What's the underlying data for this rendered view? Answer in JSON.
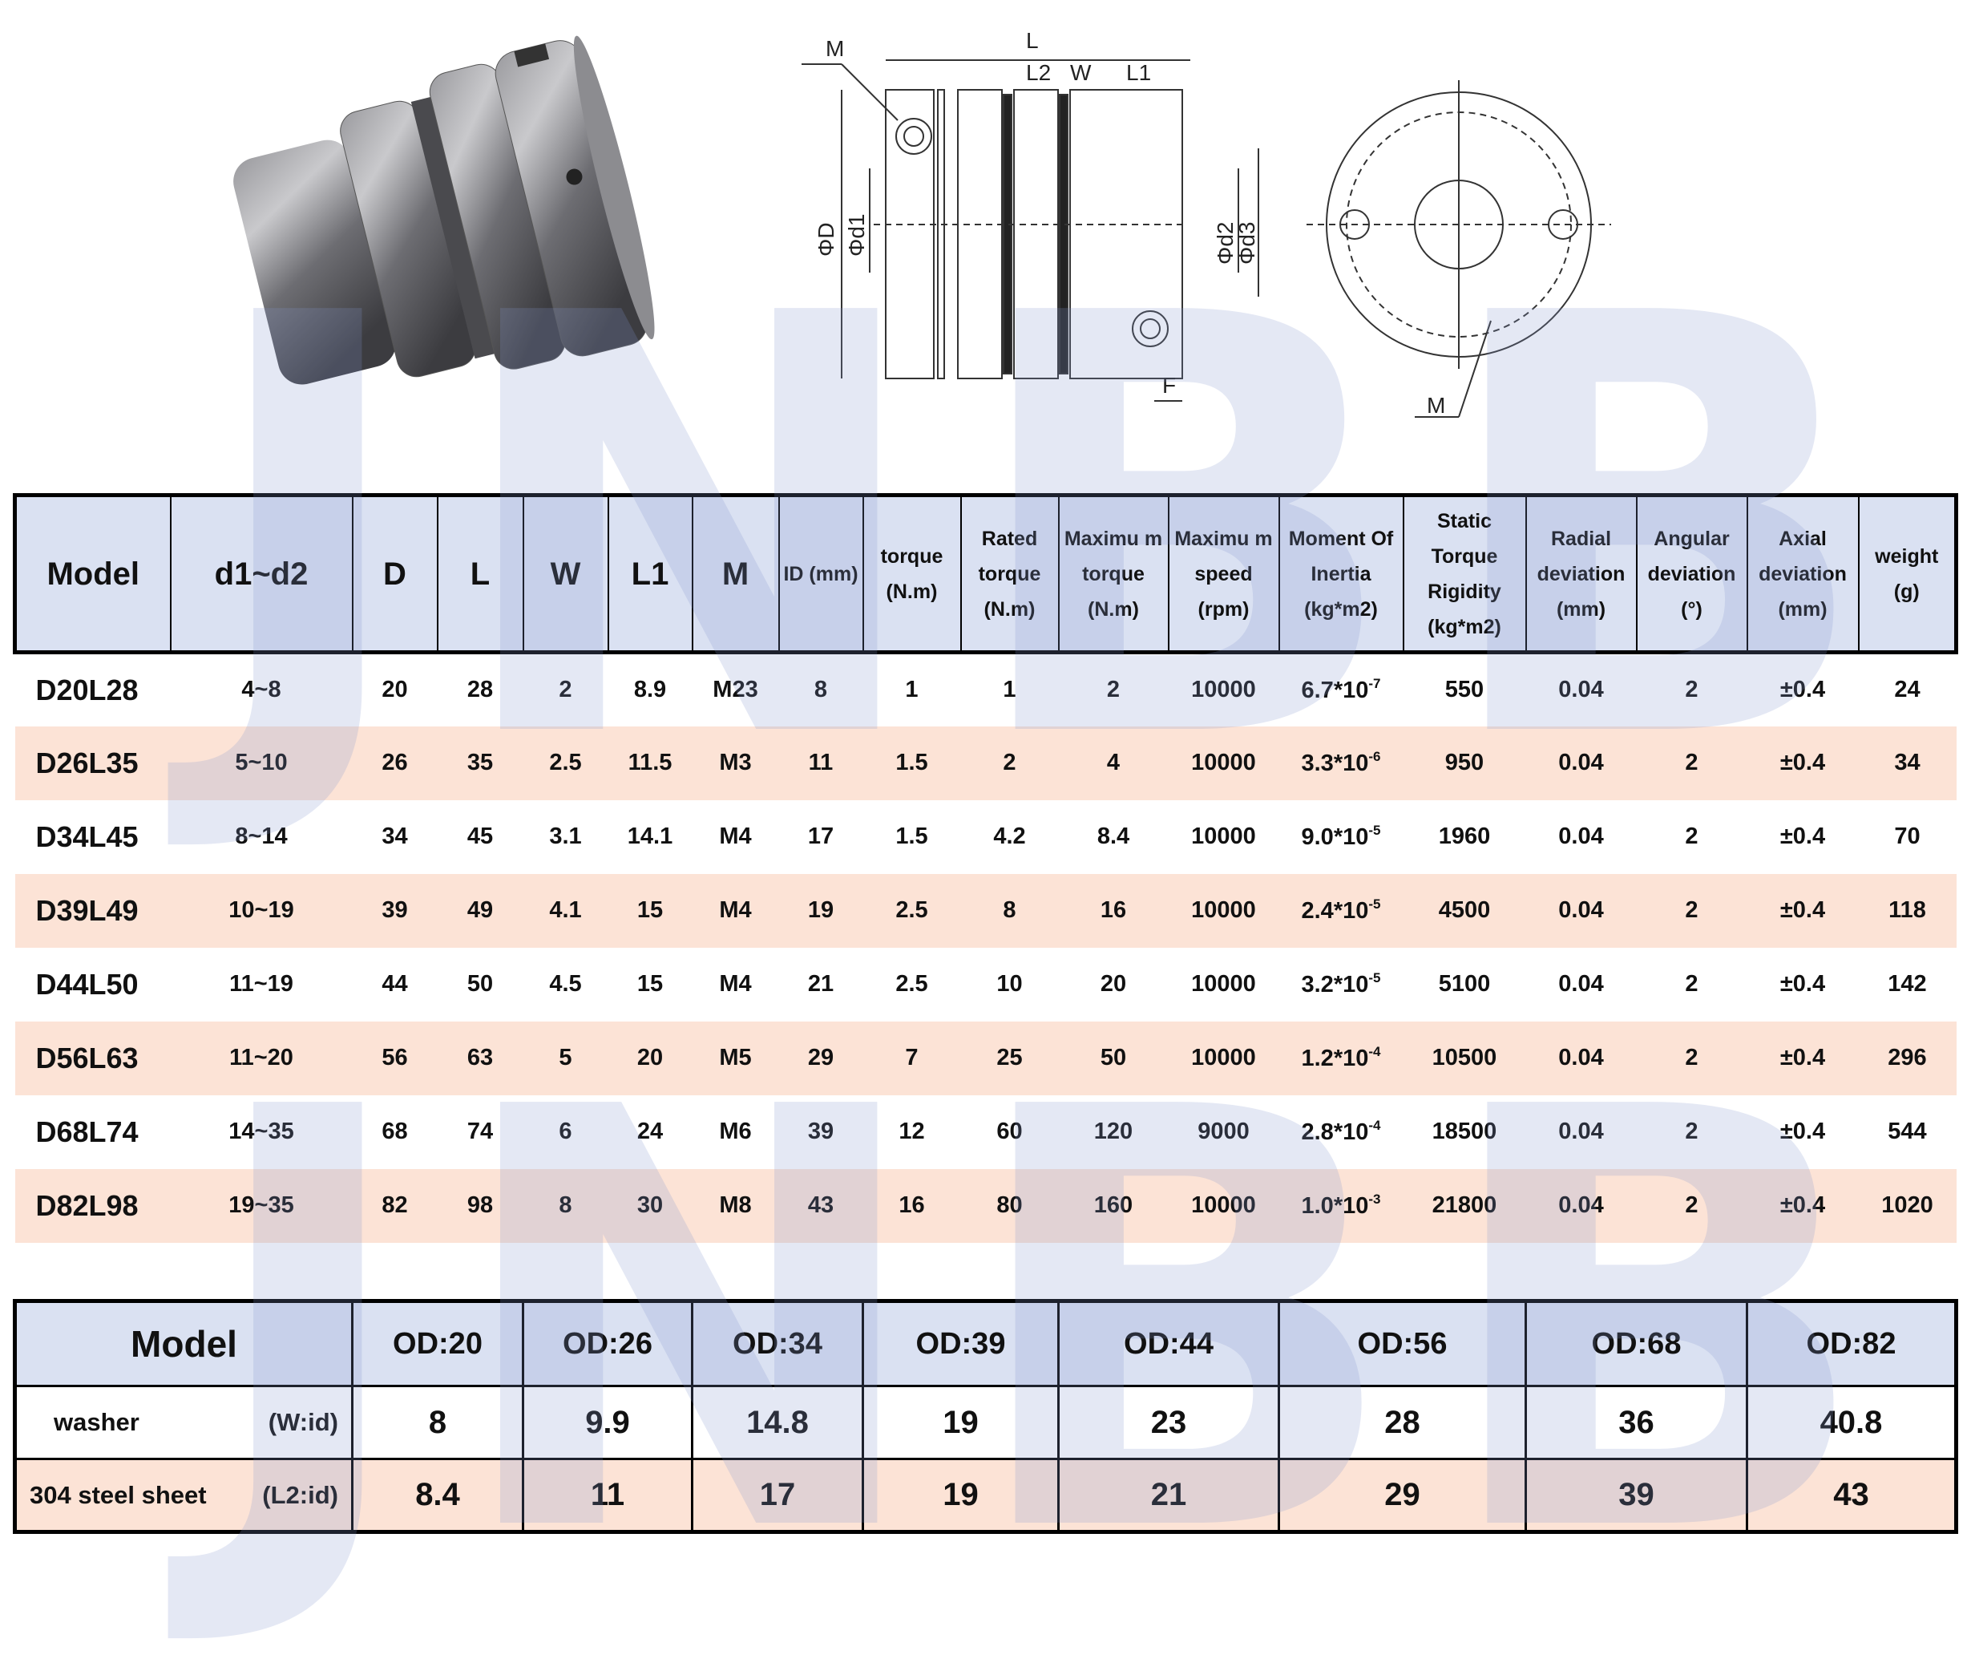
{
  "watermark": "JNBB",
  "diagram_labels": {
    "L": "L",
    "L2": "L2",
    "W": "W",
    "L1": "L1",
    "M_top": "M",
    "D": "ΦD",
    "d1": "Φd1",
    "d2": "Φd2",
    "d3": "Φd3",
    "F": "F",
    "M_side": "M"
  },
  "spec_table": {
    "headers": [
      "Model",
      "d1~d2",
      "D",
      "L",
      "W",
      "L1",
      "M",
      "ID (mm)",
      "torque (N.m)",
      "Rated torque (N.m)",
      "Maximu m torque (N.m)",
      "Maximu m speed (rpm)",
      "Moment Of Inertia (kg*m2)",
      "Static Torque Rigidity (kg*m2)",
      "Radial deviation (mm)",
      "Angular deviation (°)",
      "Axial deviation (mm)",
      "weight (g)"
    ],
    "rows": [
      {
        "model": "D20L28",
        "d": "4~8",
        "D": "20",
        "L": "28",
        "W": "2",
        "L1": "8.9",
        "M": "M23",
        "ID": "8",
        "torque": "1",
        "rated": "1",
        "max_torque": "2",
        "speed": "10000",
        "inertia": "6.7*10",
        "inertia_exp": "-7",
        "rigidity": "550",
        "radial": "0.04",
        "angular": "2",
        "axial": "±0.4",
        "weight": "24"
      },
      {
        "model": "D26L35",
        "d": "5~10",
        "D": "26",
        "L": "35",
        "W": "2.5",
        "L1": "11.5",
        "M": "M3",
        "ID": "11",
        "torque": "1.5",
        "rated": "2",
        "max_torque": "4",
        "speed": "10000",
        "inertia": "3.3*10",
        "inertia_exp": "-6",
        "rigidity": "950",
        "radial": "0.04",
        "angular": "2",
        "axial": "±0.4",
        "weight": "34"
      },
      {
        "model": "D34L45",
        "d": "8~14",
        "D": "34",
        "L": "45",
        "W": "3.1",
        "L1": "14.1",
        "M": "M4",
        "ID": "17",
        "torque": "1.5",
        "rated": "4.2",
        "max_torque": "8.4",
        "speed": "10000",
        "inertia": "9.0*10",
        "inertia_exp": "-5",
        "rigidity": "1960",
        "radial": "0.04",
        "angular": "2",
        "axial": "±0.4",
        "weight": "70"
      },
      {
        "model": "D39L49",
        "d": "10~19",
        "D": "39",
        "L": "49",
        "W": "4.1",
        "L1": "15",
        "M": "M4",
        "ID": "19",
        "torque": "2.5",
        "rated": "8",
        "max_torque": "16",
        "speed": "10000",
        "inertia": "2.4*10",
        "inertia_exp": "-5",
        "rigidity": "4500",
        "radial": "0.04",
        "angular": "2",
        "axial": "±0.4",
        "weight": "118"
      },
      {
        "model": "D44L50",
        "d": "11~19",
        "D": "44",
        "L": "50",
        "W": "4.5",
        "L1": "15",
        "M": "M4",
        "ID": "21",
        "torque": "2.5",
        "rated": "10",
        "max_torque": "20",
        "speed": "10000",
        "inertia": "3.2*10",
        "inertia_exp": "-5",
        "rigidity": "5100",
        "radial": "0.04",
        "angular": "2",
        "axial": "±0.4",
        "weight": "142"
      },
      {
        "model": "D56L63",
        "d": "11~20",
        "D": "56",
        "L": "63",
        "W": "5",
        "L1": "20",
        "M": "M5",
        "ID": "29",
        "torque": "7",
        "rated": "25",
        "max_torque": "50",
        "speed": "10000",
        "inertia": "1.2*10",
        "inertia_exp": "-4",
        "rigidity": "10500",
        "radial": "0.04",
        "angular": "2",
        "axial": "±0.4",
        "weight": "296"
      },
      {
        "model": "D68L74",
        "d": "14~35",
        "D": "68",
        "L": "74",
        "W": "6",
        "L1": "24",
        "M": "M6",
        "ID": "39",
        "torque": "12",
        "rated": "60",
        "max_torque": "120",
        "speed": "9000",
        "inertia": "2.8*10",
        "inertia_exp": "-4",
        "rigidity": "18500",
        "radial": "0.04",
        "angular": "2",
        "axial": "±0.4",
        "weight": "544"
      },
      {
        "model": "D82L98",
        "d": "19~35",
        "D": "82",
        "L": "98",
        "W": "8",
        "L1": "30",
        "M": "M8",
        "ID": "43",
        "torque": "16",
        "rated": "80",
        "max_torque": "160",
        "speed": "10000",
        "inertia": "1.0*10",
        "inertia_exp": "-3",
        "rigidity": "21800",
        "radial": "0.04",
        "angular": "2",
        "axial": "±0.4",
        "weight": "1020"
      }
    ]
  },
  "washer_table": {
    "model_label": "Model",
    "headers": [
      "OD:20",
      "OD:26",
      "OD:34",
      "OD:39",
      "OD:44",
      "OD:56",
      "OD:68",
      "OD:82"
    ],
    "rows": [
      {
        "label": "washer",
        "unit": "(W:id)",
        "values": [
          "8",
          "9.9",
          "14.8",
          "19",
          "23",
          "28",
          "36",
          "40.8"
        ]
      },
      {
        "label": "304 steel sheet",
        "unit": "(L2:id)",
        "values": [
          "8.4",
          "11",
          "17",
          "19",
          "21",
          "29",
          "39",
          "43"
        ]
      }
    ]
  },
  "colors": {
    "header_bg": "#dae1f2",
    "alt_row": "#fce3d6"
  }
}
